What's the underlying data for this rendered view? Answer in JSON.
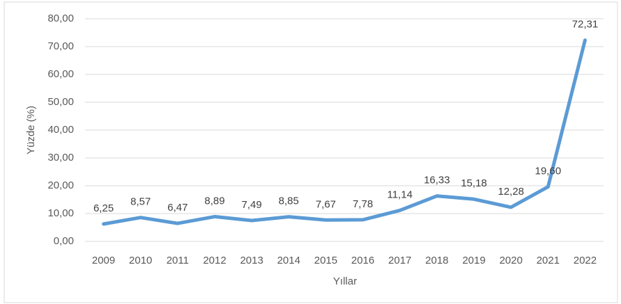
{
  "chart_data": {
    "type": "line",
    "x_label": "Yıllar",
    "y_label": "Yüzde (%)",
    "categories": [
      "2009",
      "2010",
      "2011",
      "2012",
      "2013",
      "2014",
      "2015",
      "2016",
      "2017",
      "2018",
      "2019",
      "2020",
      "2021",
      "2022"
    ],
    "values": [
      6.25,
      8.57,
      6.47,
      8.89,
      7.49,
      8.85,
      7.67,
      7.78,
      11.14,
      16.33,
      15.18,
      12.28,
      19.6,
      72.31
    ],
    "value_labels": [
      "6,25",
      "8,57",
      "6,47",
      "8,89",
      "7,49",
      "8,85",
      "7,67",
      "7,78",
      "11,14",
      "16,33",
      "15,18",
      "12,28",
      "19,60",
      "72,31"
    ],
    "color": "#5b9bd5",
    "ylim": [
      0,
      80
    ],
    "yticks": [
      {
        "value": 0,
        "label": "0,00"
      },
      {
        "value": 10,
        "label": "10,00"
      },
      {
        "value": 20,
        "label": "20,00"
      },
      {
        "value": 30,
        "label": "30,00"
      },
      {
        "value": 40,
        "label": "40,00"
      },
      {
        "value": 50,
        "label": "50,00"
      },
      {
        "value": 60,
        "label": "60,00"
      },
      {
        "value": 70,
        "label": "70,00"
      },
      {
        "value": 80,
        "label": "80,00"
      }
    ],
    "grid": true
  }
}
